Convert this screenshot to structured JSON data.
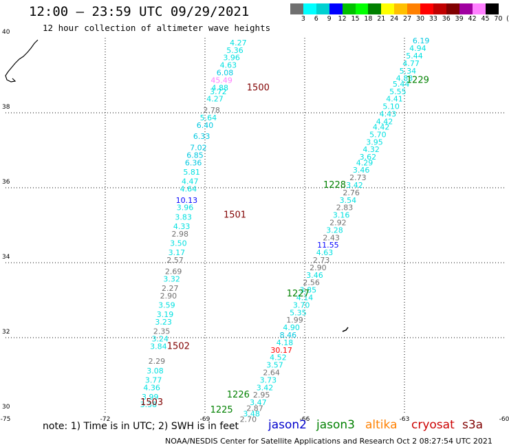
{
  "header": {
    "title": "12:00 – 23:59 UTC 09/29/2021",
    "subtitle": "12 hour collection of altimeter wave heights"
  },
  "color_scale": {
    "labels": [
      "3",
      "6",
      "9",
      "12",
      "15",
      "18",
      "21",
      "24",
      "27",
      "30",
      "33",
      "36",
      "39",
      "42",
      "45",
      "70",
      "(ft)"
    ],
    "colors": [
      "#707070",
      "#00ffff",
      "#00d0d0",
      "#0000ff",
      "#00c000",
      "#00ff00",
      "#008000",
      "#ffff00",
      "#ffc000",
      "#ff8000",
      "#ff0000",
      "#c00000",
      "#800000",
      "#a000a0",
      "#ff80ff",
      "#000000"
    ]
  },
  "footer": {
    "note": "note:  1) Time is in UTC;  2) SWH is in feet",
    "credit": "NOAA/NESDIS Center for Satellite Applications and Research    Oct  2 08:27:54 UTC 2021",
    "satellites": [
      {
        "name": "jason2",
        "color": "#0000cc"
      },
      {
        "name": "jason3",
        "color": "#008000"
      },
      {
        "name": "altika",
        "color": "#ff8000"
      },
      {
        "name": "cryosat",
        "color": "#cc0000"
      },
      {
        "name": "s3a",
        "color": "#800000"
      }
    ]
  },
  "chart_data": {
    "type": "scatter",
    "xlim": [
      -75,
      -60
    ],
    "ylim": [
      30,
      40
    ],
    "x_ticks": [
      "-75",
      "-72",
      "-69",
      "-66",
      "-63",
      "-60"
    ],
    "x_tick_values": [
      -75,
      -72,
      -69,
      -66,
      -63,
      -60
    ],
    "y_ticks": [
      "30",
      "32",
      "34",
      "36",
      "38",
      "40"
    ],
    "y_tick_values": [
      30,
      32,
      34,
      36,
      38,
      40
    ],
    "grid": "dotted",
    "pass_labels": [
      {
        "text": "1500",
        "lon": -67.4,
        "lat": 38.6,
        "color": "#800000"
      },
      {
        "text": "1501",
        "lon": -68.1,
        "lat": 35.2,
        "color": "#800000"
      },
      {
        "text": "1502",
        "lon": -69.8,
        "lat": 31.7,
        "color": "#800000"
      },
      {
        "text": "1503",
        "lon": -70.6,
        "lat": 30.2,
        "color": "#800000"
      },
      {
        "text": "1229",
        "lon": -62.6,
        "lat": 38.8,
        "color": "#008000"
      },
      {
        "text": "1228",
        "lon": -65.1,
        "lat": 36.0,
        "color": "#008000"
      },
      {
        "text": "1227",
        "lon": -66.2,
        "lat": 33.1,
        "color": "#008000"
      },
      {
        "text": "1226",
        "lon": -68.0,
        "lat": 30.4,
        "color": "#008000"
      },
      {
        "text": "1225",
        "lon": -68.5,
        "lat": 30.0,
        "color": "#008000"
      }
    ],
    "series": [
      {
        "name": "s3a",
        "points": [
          {
            "lon": -68.0,
            "lat": 39.8,
            "v": "4.27",
            "c": "#00e0e0"
          },
          {
            "lon": -68.1,
            "lat": 39.6,
            "v": "5.36",
            "c": "#00e0e0"
          },
          {
            "lon": -68.2,
            "lat": 39.4,
            "v": "3.96",
            "c": "#00e0e0"
          },
          {
            "lon": -68.3,
            "lat": 39.2,
            "v": "4.63",
            "c": "#00e0e0"
          },
          {
            "lon": -68.4,
            "lat": 39.0,
            "v": "6.08",
            "c": "#00c8e0"
          },
          {
            "lon": -68.5,
            "lat": 38.8,
            "v": "45.49",
            "c": "#ff80ff"
          },
          {
            "lon": -68.55,
            "lat": 38.6,
            "v": "4.88",
            "c": "#00e0e0"
          },
          {
            "lon": -68.6,
            "lat": 38.5,
            "v": "3.72",
            "c": "#00e0e0"
          },
          {
            "lon": -68.7,
            "lat": 38.3,
            "v": "4.27",
            "c": "#00e0e0"
          },
          {
            "lon": -68.8,
            "lat": 38.0,
            "v": "2.78",
            "c": "#707070"
          },
          {
            "lon": -68.9,
            "lat": 37.8,
            "v": "5.64",
            "c": "#00e0e0"
          },
          {
            "lon": -69.0,
            "lat": 37.6,
            "v": "6.40",
            "c": "#00c8e0"
          },
          {
            "lon": -69.1,
            "lat": 37.3,
            "v": "6.33",
            "c": "#00c8e0"
          },
          {
            "lon": -69.2,
            "lat": 37.0,
            "v": "7.02",
            "c": "#00c8e0"
          },
          {
            "lon": -69.3,
            "lat": 36.8,
            "v": "6.85",
            "c": "#00c8e0"
          },
          {
            "lon": -69.35,
            "lat": 36.6,
            "v": "6.36",
            "c": "#00c8e0"
          },
          {
            "lon": -69.4,
            "lat": 36.35,
            "v": "5.81",
            "c": "#00e0e0"
          },
          {
            "lon": -69.45,
            "lat": 36.1,
            "v": "4.47",
            "c": "#00e0e0"
          },
          {
            "lon": -69.5,
            "lat": 35.9,
            "v": "4.64",
            "c": "#00e0e0"
          },
          {
            "lon": -69.55,
            "lat": 35.6,
            "v": "10.13",
            "c": "#0000ff"
          },
          {
            "lon": -69.6,
            "lat": 35.4,
            "v": "3.96",
            "c": "#00e0e0"
          },
          {
            "lon": -69.65,
            "lat": 35.15,
            "v": "3.83",
            "c": "#00e0e0"
          },
          {
            "lon": -69.7,
            "lat": 34.9,
            "v": "4.33",
            "c": "#00e0e0"
          },
          {
            "lon": -69.75,
            "lat": 34.7,
            "v": "2.98",
            "c": "#707070"
          },
          {
            "lon": -69.8,
            "lat": 34.45,
            "v": "3.50",
            "c": "#00e0e0"
          },
          {
            "lon": -69.85,
            "lat": 34.2,
            "v": "3.17",
            "c": "#00e0e0"
          },
          {
            "lon": -69.9,
            "lat": 34.0,
            "v": "2.57",
            "c": "#707070"
          },
          {
            "lon": -69.95,
            "lat": 33.7,
            "v": "2.69",
            "c": "#707070"
          },
          {
            "lon": -70.0,
            "lat": 33.5,
            "v": "3.32",
            "c": "#00e0e0"
          },
          {
            "lon": -70.05,
            "lat": 33.25,
            "v": "2.27",
            "c": "#707070"
          },
          {
            "lon": -70.1,
            "lat": 33.05,
            "v": "2.90",
            "c": "#707070"
          },
          {
            "lon": -70.15,
            "lat": 32.8,
            "v": "3.59",
            "c": "#00e0e0"
          },
          {
            "lon": -70.2,
            "lat": 32.55,
            "v": "3.19",
            "c": "#00e0e0"
          },
          {
            "lon": -70.25,
            "lat": 32.35,
            "v": "3.23",
            "c": "#00e0e0"
          },
          {
            "lon": -70.3,
            "lat": 32.1,
            "v": "2.35",
            "c": "#707070"
          },
          {
            "lon": -70.35,
            "lat": 31.9,
            "v": "3.24",
            "c": "#00e0e0"
          },
          {
            "lon": -70.4,
            "lat": 31.7,
            "v": "3.84",
            "c": "#00e0e0"
          },
          {
            "lon": -70.45,
            "lat": 31.3,
            "v": "2.29",
            "c": "#707070"
          },
          {
            "lon": -70.5,
            "lat": 31.05,
            "v": "3.08",
            "c": "#00e0e0"
          },
          {
            "lon": -70.55,
            "lat": 30.8,
            "v": "3.77",
            "c": "#00e0e0"
          },
          {
            "lon": -70.6,
            "lat": 30.6,
            "v": "4.36",
            "c": "#00e0e0"
          },
          {
            "lon": -70.65,
            "lat": 30.35,
            "v": "3.99",
            "c": "#00e0e0"
          },
          {
            "lon": -70.7,
            "lat": 30.15,
            "v": "3.38",
            "c": "#00e0e0"
          }
        ]
      },
      {
        "name": "jason3",
        "points": [
          {
            "lon": -62.5,
            "lat": 39.85,
            "v": "6.19",
            "c": "#00c8e0"
          },
          {
            "lon": -62.6,
            "lat": 39.65,
            "v": "4.94",
            "c": "#00e0e0"
          },
          {
            "lon": -62.7,
            "lat": 39.45,
            "v": "5.44",
            "c": "#00e0e0"
          },
          {
            "lon": -62.8,
            "lat": 39.25,
            "v": "4.77",
            "c": "#00e0e0"
          },
          {
            "lon": -62.9,
            "lat": 39.05,
            "v": "5.34",
            "c": "#00e0e0"
          },
          {
            "lon": -63.0,
            "lat": 38.85,
            "v": "4.83",
            "c": "#00e0e0"
          },
          {
            "lon": -63.1,
            "lat": 38.7,
            "v": "5.44",
            "c": "#00e0e0"
          },
          {
            "lon": -63.2,
            "lat": 38.5,
            "v": "5.55",
            "c": "#00e0e0"
          },
          {
            "lon": -63.3,
            "lat": 38.3,
            "v": "4.41",
            "c": "#00e0e0"
          },
          {
            "lon": -63.4,
            "lat": 38.1,
            "v": "5.10",
            "c": "#00e0e0"
          },
          {
            "lon": -63.5,
            "lat": 37.9,
            "v": "4.43",
            "c": "#00e0e0"
          },
          {
            "lon": -63.6,
            "lat": 37.7,
            "v": "4.42",
            "c": "#00e0e0"
          },
          {
            "lon": -63.7,
            "lat": 37.55,
            "v": "4.42",
            "c": "#00e0e0"
          },
          {
            "lon": -63.8,
            "lat": 37.35,
            "v": "5.70",
            "c": "#00e0e0"
          },
          {
            "lon": -63.9,
            "lat": 37.15,
            "v": "3.95",
            "c": "#00e0e0"
          },
          {
            "lon": -64.0,
            "lat": 36.95,
            "v": "4.32",
            "c": "#00e0e0"
          },
          {
            "lon": -64.1,
            "lat": 36.75,
            "v": "3.62",
            "c": "#00e0e0"
          },
          {
            "lon": -64.2,
            "lat": 36.6,
            "v": "4.29",
            "c": "#00e0e0"
          },
          {
            "lon": -64.3,
            "lat": 36.4,
            "v": "3.46",
            "c": "#00e0e0"
          },
          {
            "lon": -64.4,
            "lat": 36.2,
            "v": "2.73",
            "c": "#707070"
          },
          {
            "lon": -64.5,
            "lat": 36.0,
            "v": "3.42",
            "c": "#00e0e0"
          },
          {
            "lon": -64.6,
            "lat": 35.8,
            "v": "2.76",
            "c": "#707070"
          },
          {
            "lon": -64.7,
            "lat": 35.6,
            "v": "3.54",
            "c": "#00e0e0"
          },
          {
            "lon": -64.8,
            "lat": 35.4,
            "v": "2.83",
            "c": "#707070"
          },
          {
            "lon": -64.9,
            "lat": 35.2,
            "v": "3.16",
            "c": "#00e0e0"
          },
          {
            "lon": -65.0,
            "lat": 35.0,
            "v": "2.92",
            "c": "#707070"
          },
          {
            "lon": -65.1,
            "lat": 34.8,
            "v": "3.28",
            "c": "#00e0e0"
          },
          {
            "lon": -65.2,
            "lat": 34.6,
            "v": "2.43",
            "c": "#707070"
          },
          {
            "lon": -65.3,
            "lat": 34.4,
            "v": "11.55",
            "c": "#0000ff"
          },
          {
            "lon": -65.4,
            "lat": 34.2,
            "v": "4.63",
            "c": "#00e0e0"
          },
          {
            "lon": -65.5,
            "lat": 34.0,
            "v": "2.73",
            "c": "#707070"
          },
          {
            "lon": -65.6,
            "lat": 33.8,
            "v": "2.90",
            "c": "#707070"
          },
          {
            "lon": -65.7,
            "lat": 33.6,
            "v": "3.46",
            "c": "#00e0e0"
          },
          {
            "lon": -65.8,
            "lat": 33.4,
            "v": "2.56",
            "c": "#707070"
          },
          {
            "lon": -65.9,
            "lat": 33.2,
            "v": "3.85",
            "c": "#00e0e0"
          },
          {
            "lon": -66.0,
            "lat": 33.0,
            "v": "4.14",
            "c": "#00e0e0"
          },
          {
            "lon": -66.1,
            "lat": 32.8,
            "v": "3.70",
            "c": "#00e0e0"
          },
          {
            "lon": -66.2,
            "lat": 32.6,
            "v": "5.35",
            "c": "#00e0e0"
          },
          {
            "lon": -66.3,
            "lat": 32.4,
            "v": "1.99",
            "c": "#707070"
          },
          {
            "lon": -66.4,
            "lat": 32.2,
            "v": "4.90",
            "c": "#00e0e0"
          },
          {
            "lon": -66.5,
            "lat": 32.0,
            "v": "8.46",
            "c": "#00c8e0"
          },
          {
            "lon": -66.6,
            "lat": 31.8,
            "v": "4.18",
            "c": "#00e0e0"
          },
          {
            "lon": -66.7,
            "lat": 31.6,
            "v": "30.17",
            "c": "#ff0000"
          },
          {
            "lon": -66.8,
            "lat": 31.4,
            "v": "4.52",
            "c": "#00e0e0"
          },
          {
            "lon": -66.9,
            "lat": 31.2,
            "v": "3.57",
            "c": "#00e0e0"
          },
          {
            "lon": -67.0,
            "lat": 31.0,
            "v": "2.64",
            "c": "#707070"
          },
          {
            "lon": -67.1,
            "lat": 30.8,
            "v": "3.73",
            "c": "#00e0e0"
          },
          {
            "lon": -67.2,
            "lat": 30.6,
            "v": "3.42",
            "c": "#00e0e0"
          },
          {
            "lon": -67.3,
            "lat": 30.4,
            "v": "2.95",
            "c": "#707070"
          },
          {
            "lon": -67.4,
            "lat": 30.2,
            "v": "3.47",
            "c": "#00e0e0"
          },
          {
            "lon": -67.5,
            "lat": 30.05,
            "v": "2.87",
            "c": "#707070"
          },
          {
            "lon": -67.6,
            "lat": 29.9,
            "v": "3.48",
            "c": "#00e0e0"
          },
          {
            "lon": -67.7,
            "lat": 29.75,
            "v": "2.70",
            "c": "#707070"
          }
        ]
      }
    ]
  }
}
